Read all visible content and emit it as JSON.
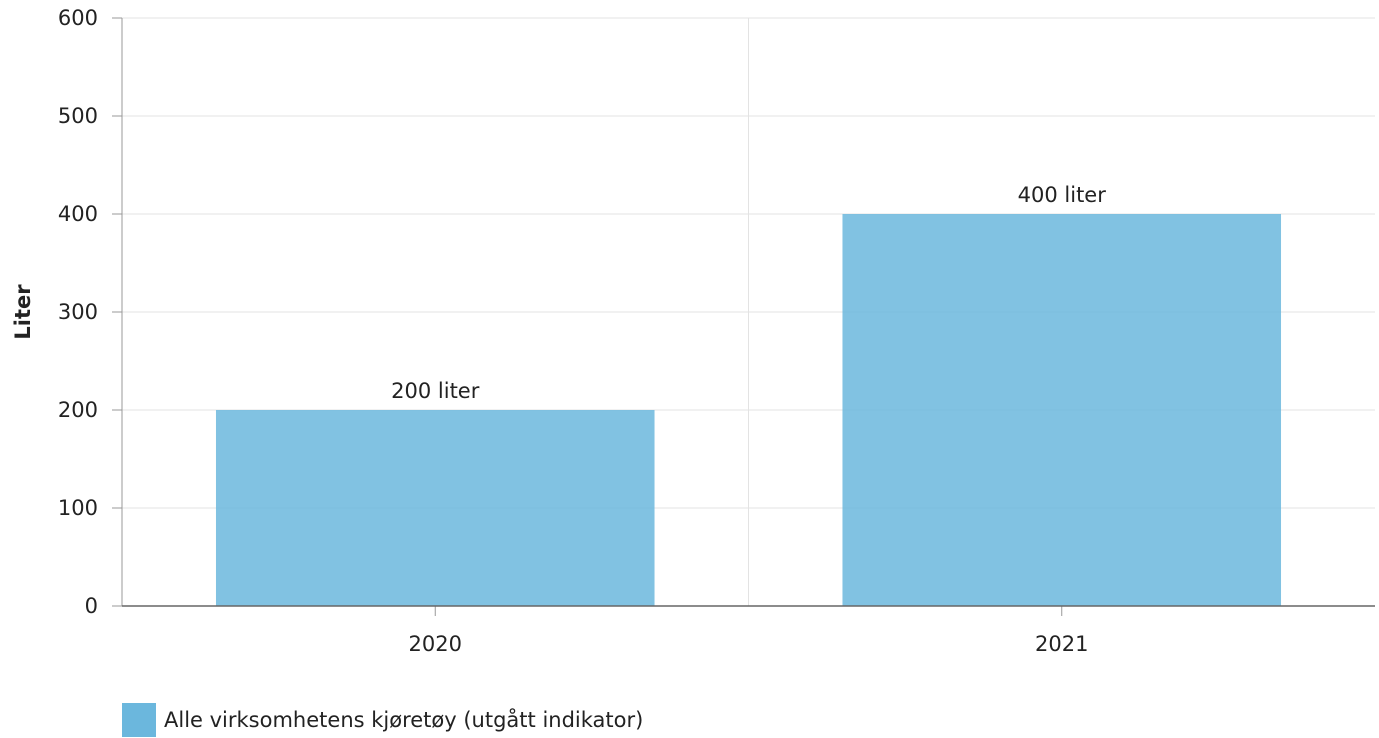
{
  "chart_data": {
    "type": "bar",
    "categories": [
      "2020",
      "2021"
    ],
    "series": [
      {
        "name": "Alle virksomhetens kjøretøy (utgått indikator)",
        "values": [
          200,
          400
        ],
        "data_labels": [
          "200 liter",
          "400 liter"
        ],
        "color": "#6bb7dd"
      }
    ],
    "ylabel": "Liter",
    "xlabel": "",
    "ylim": [
      0,
      600
    ],
    "yticks": [
      "0",
      "100",
      "200",
      "300",
      "400",
      "500",
      "600"
    ],
    "grid": true,
    "legend": "bottom-left"
  }
}
